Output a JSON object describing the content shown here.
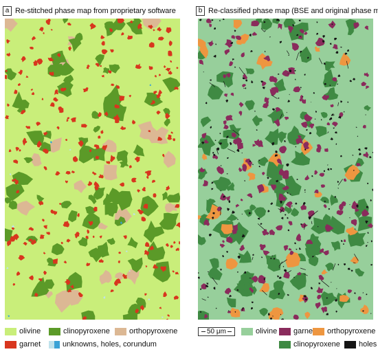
{
  "panel_a": {
    "tag": "a",
    "title": "Re-stitched phase map from proprietary software",
    "legend": [
      {
        "label": "olivine",
        "color": "#c9ee7a"
      },
      {
        "label": "clinopyroxene",
        "color": "#5b9a28"
      },
      {
        "label": "orthopyroxene",
        "color": "#dcb894"
      },
      {
        "label": "garnet",
        "color": "#d8361e"
      },
      {
        "label": "unknowns, holes, corundum",
        "colors": [
          "#bfe2ec",
          "#3aa2d6"
        ]
      }
    ]
  },
  "panel_b": {
    "tag": "b",
    "title": "Re-classified phase map (BSE and original phase map)",
    "scale_label": "50 μm",
    "legend": [
      {
        "label": "olivine",
        "color": "#97cf9b"
      },
      {
        "label": "garnet",
        "color": "#8a2b5c"
      },
      {
        "label": "orthopyroxene",
        "color": "#ee9640"
      },
      {
        "label": "clinopyroxene",
        "color": "#3f8a43"
      },
      {
        "label": "holes",
        "color": "#151515"
      }
    ]
  }
}
